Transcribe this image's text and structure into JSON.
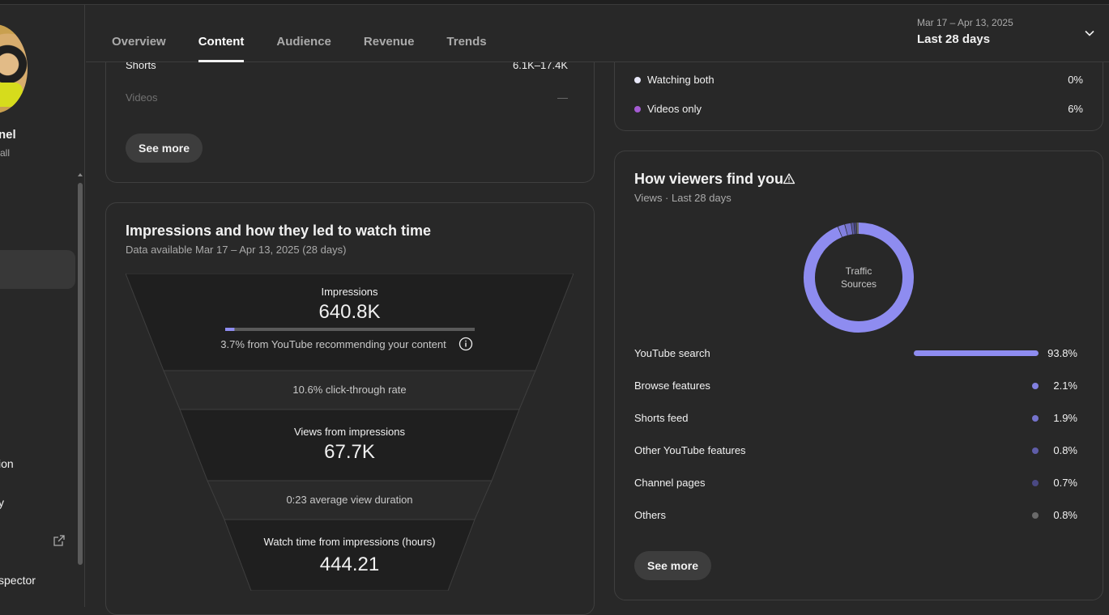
{
  "sidebar": {
    "channel_name": "nel",
    "channel_sub": "all",
    "items": [
      {
        "label": "ion"
      },
      {
        "label": "y"
      },
      {
        "label": "spector"
      }
    ]
  },
  "header": {
    "tabs": [
      {
        "label": "Overview"
      },
      {
        "label": "Content"
      },
      {
        "label": "Audience"
      },
      {
        "label": "Revenue"
      },
      {
        "label": "Trends"
      }
    ],
    "active_tab": "Content",
    "date_range": "Mar 17 – Apr 13, 2025",
    "date_label": "Last 28 days"
  },
  "shorts_card": {
    "rows": [
      {
        "label": "Shorts",
        "value": "6.1K–17.4K"
      },
      {
        "label": "Videos",
        "value": "—"
      }
    ],
    "see_more": "See more"
  },
  "impressions_card": {
    "title": "Impressions and how they led to watch time",
    "subtitle": "Data available Mar 17 – Apr 13, 2025 (28 days)",
    "impressions_label": "Impressions",
    "impressions_value": "640.8K",
    "recommend_fraction": 0.037,
    "recommend_text": "3.7% from YouTube recommending your content",
    "ctr_text": "10.6% click-through rate",
    "views_label": "Views from impressions",
    "views_value": "67.7K",
    "avd_text": "0:23 average view duration",
    "watch_label": "Watch time from impressions (hours)",
    "watch_value": "444.21"
  },
  "viewer_type_card": {
    "rows": [
      {
        "label": "Watching both",
        "value": "0%",
        "color": "#e8e8f8"
      },
      {
        "label": "Videos only",
        "value": "6%",
        "color": "#a45bd3"
      }
    ]
  },
  "traffic_card": {
    "title": "How viewers find you",
    "subtitle": "Views · Last 28 days",
    "donut_label_line1": "Traffic",
    "donut_label_line2": "Sources",
    "sources": [
      {
        "label": "YouTube search",
        "value": "93.8%",
        "fraction": 0.938,
        "color": "#8e8cf0"
      },
      {
        "label": "Browse features",
        "value": "2.1%",
        "fraction": 0.021,
        "color": "#8280e0"
      },
      {
        "label": "Shorts feed",
        "value": "1.9%",
        "fraction": 0.019,
        "color": "#7573cc"
      },
      {
        "label": "Other YouTube features",
        "value": "0.8%",
        "fraction": 0.008,
        "color": "#5f5da8"
      },
      {
        "label": "Channel pages",
        "value": "0.7%",
        "fraction": 0.007,
        "color": "#4a4983"
      },
      {
        "label": "Others",
        "value": "0.8%",
        "fraction": 0.008,
        "color": "#6a6a6a"
      }
    ],
    "see_more": "See more"
  }
}
